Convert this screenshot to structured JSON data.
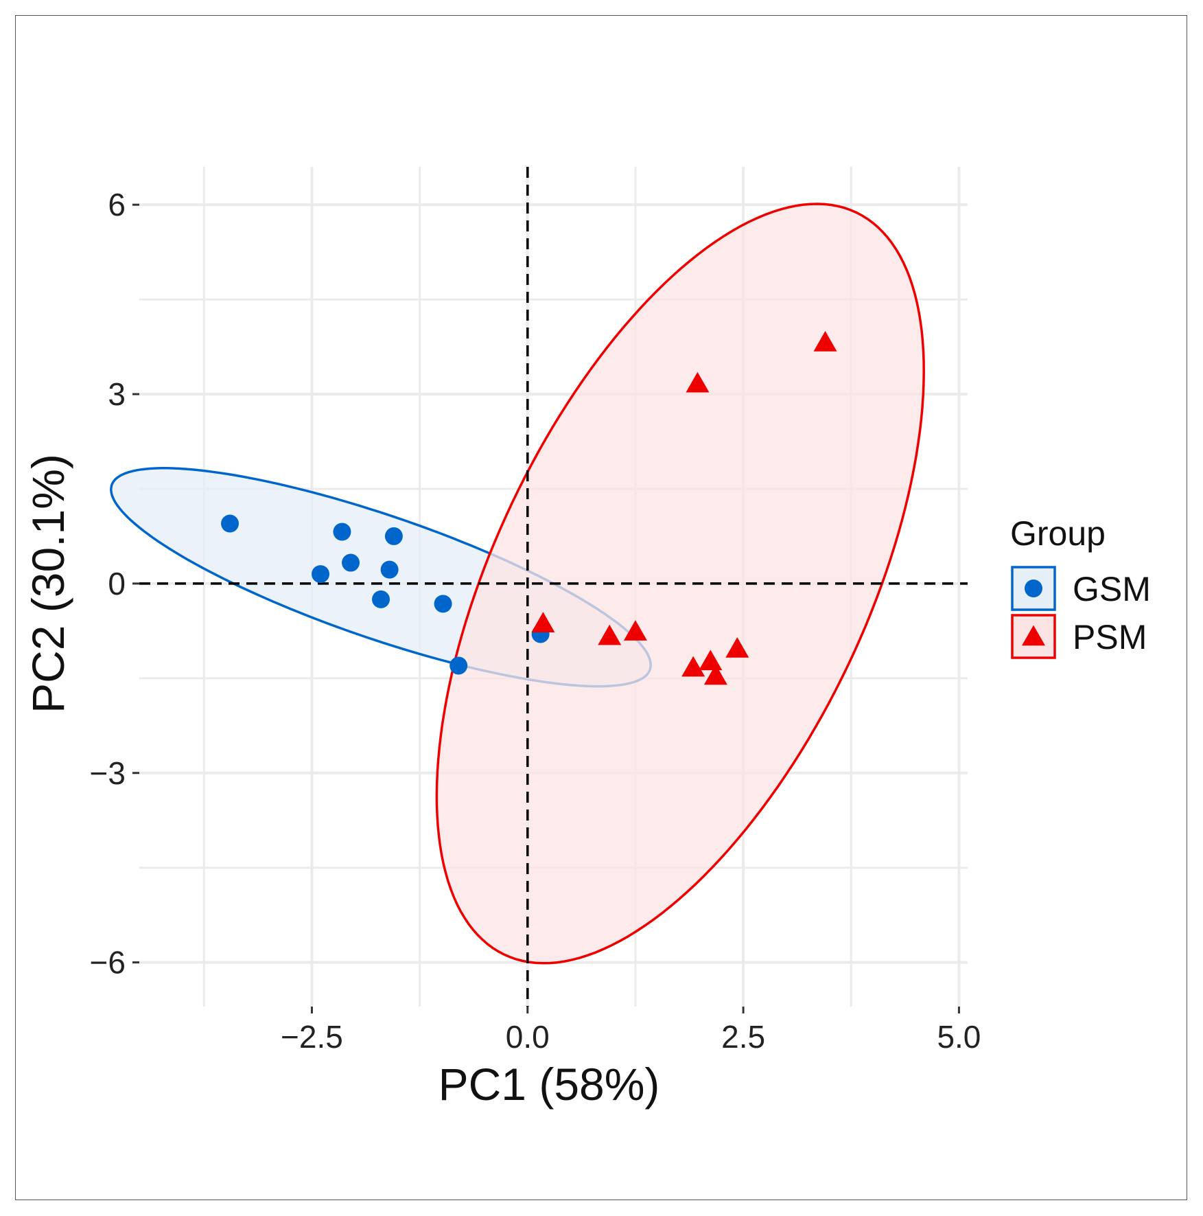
{
  "chart_data": {
    "type": "scatter",
    "title": "",
    "xlabel": "PC1 (58%)",
    "ylabel": "PC2 (30.1%)",
    "xlim": [
      -4.5,
      5.1
    ],
    "ylim": [
      -6.7,
      6.6
    ],
    "xticks": [
      -2.5,
      0.0,
      2.5,
      5.0
    ],
    "xtick_labels": [
      "−2.5",
      "0.0",
      "2.5",
      "5.0"
    ],
    "yticks": [
      -6,
      -3,
      0,
      3,
      6
    ],
    "ytick_labels": [
      "−6",
      "−3",
      "0",
      "3",
      "6"
    ],
    "grid": true,
    "reference_lines": {
      "x": 0,
      "y": 0,
      "style": "dashed"
    },
    "legend": {
      "title": "Group",
      "position": "right"
    },
    "series": [
      {
        "name": "GSM",
        "marker": "circle",
        "color": "#0066CC",
        "fill": "#E6EEF8",
        "points": [
          {
            "x": -3.45,
            "y": 0.95
          },
          {
            "x": -2.15,
            "y": 0.82
          },
          {
            "x": -1.55,
            "y": 0.75
          },
          {
            "x": -2.05,
            "y": 0.33
          },
          {
            "x": -1.6,
            "y": 0.22
          },
          {
            "x": -2.4,
            "y": 0.15
          },
          {
            "x": -1.7,
            "y": -0.25
          },
          {
            "x": -0.98,
            "y": -0.32
          },
          {
            "x": -0.8,
            "y": -1.3
          },
          {
            "x": 0.15,
            "y": -0.8
          }
        ],
        "ellipse": {
          "cx": -1.7,
          "cy": 0.1,
          "rx": 3.45,
          "ry": 0.93,
          "angle_deg": -26
        }
      },
      {
        "name": "PSM",
        "marker": "triangle",
        "color": "#EE0000",
        "fill": "#FCE4E4",
        "points": [
          {
            "x": 3.45,
            "y": 3.8
          },
          {
            "x": 1.97,
            "y": 3.15
          },
          {
            "x": 0.18,
            "y": -0.65
          },
          {
            "x": 0.95,
            "y": -0.85
          },
          {
            "x": 1.25,
            "y": -0.78
          },
          {
            "x": 1.92,
            "y": -1.35
          },
          {
            "x": 2.12,
            "y": -1.25
          },
          {
            "x": 2.18,
            "y": -1.48
          },
          {
            "x": 2.43,
            "y": -1.05
          }
        ],
        "ellipse": {
          "cx": 1.77,
          "cy": 0.0,
          "rx": 6.25,
          "ry": 2.25,
          "angle_deg": 73
        }
      }
    ]
  }
}
